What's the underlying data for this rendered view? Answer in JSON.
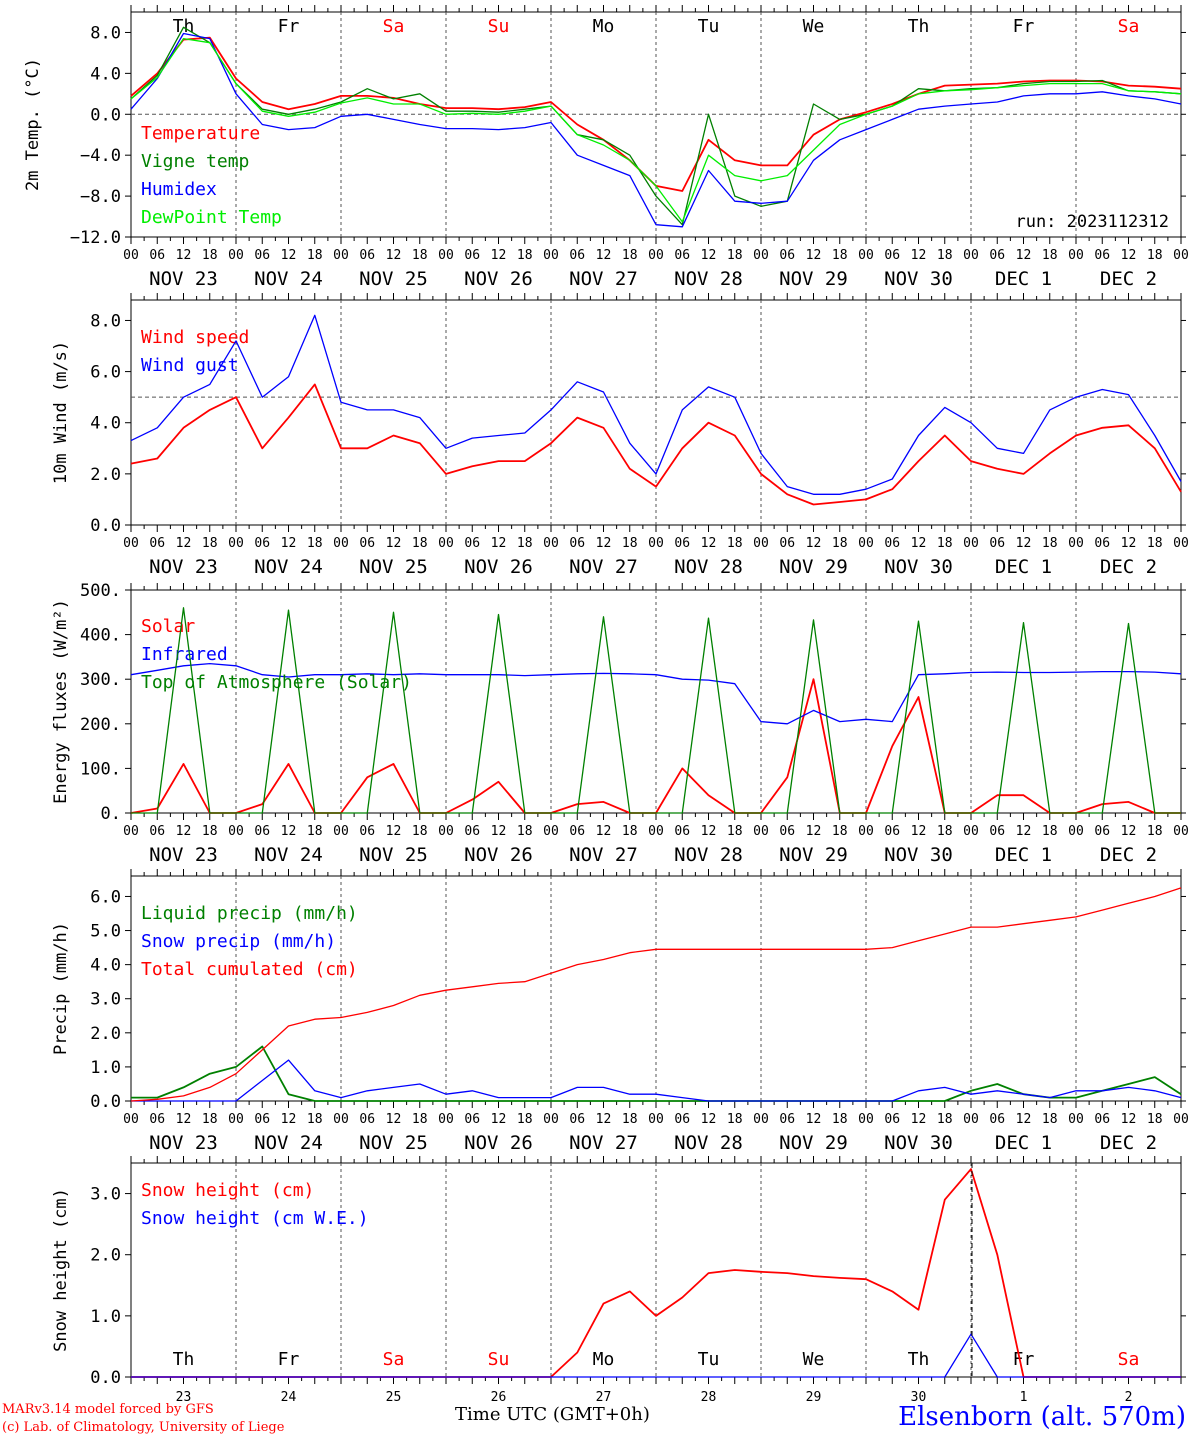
{
  "footer": {
    "credit_line1": "MARv3.14 model forced by GFS",
    "credit_line2": "(c) Lab. of Climatology, University of Liege",
    "time_label": "Time UTC (GMT+0h)",
    "station": "Elsenborn (alt. 570m)"
  },
  "colors": {
    "red": "#ff0000",
    "darkgreen": "#008000",
    "blue": "#0000ff",
    "lightgreen": "#00ee00",
    "grid": "#000000"
  },
  "axis_common": {
    "hour_ticks": [
      "00",
      "06",
      "12",
      "18",
      "00",
      "06",
      "12",
      "18",
      "00",
      "06",
      "12",
      "18",
      "00",
      "06",
      "12",
      "18",
      "00",
      "06",
      "12",
      "18",
      "00",
      "06",
      "12",
      "18",
      "00",
      "06",
      "12",
      "18",
      "00",
      "06",
      "12",
      "18",
      "00",
      "06",
      "12",
      "18",
      "00",
      "06",
      "12",
      "18",
      "00"
    ],
    "date_labels": [
      "NOV 23",
      "NOV 24",
      "NOV 25",
      "NOV 26",
      "NOV 27",
      "NOV 28",
      "NOV 29",
      "NOV 30",
      "DEC  1",
      "DEC  2"
    ],
    "day_names": [
      "Th",
      "Fr",
      "Sa",
      "Su",
      "Mo",
      "Tu",
      "We",
      "Th",
      "Fr",
      "Sa"
    ],
    "day_colors": [
      "#000000",
      "#000000",
      "#ff0000",
      "#ff0000",
      "#000000",
      "#000000",
      "#000000",
      "#000000",
      "#000000",
      "#ff0000"
    ],
    "day_numbers": [
      "23",
      "24",
      "25",
      "26",
      "27",
      "28",
      "29",
      "30",
      "1",
      "2"
    ]
  },
  "chart_data": [
    {
      "type": "line",
      "ylabel": "2m Temp. (°C)",
      "yticks": [
        "8.0",
        "4.0",
        "0.0",
        "−4.0",
        "−8.0",
        "−12.0"
      ],
      "ylim": [
        -12,
        10
      ],
      "run_label": "run: 2023112312",
      "x": [
        0,
        6,
        12,
        18,
        24,
        30,
        36,
        42,
        48,
        54,
        60,
        66,
        72,
        78,
        84,
        90,
        96,
        102,
        108,
        114,
        120,
        126,
        132,
        138,
        144,
        150,
        156,
        162,
        168,
        174,
        180,
        186,
        192,
        198,
        204,
        210,
        216,
        222,
        228,
        234,
        240
      ],
      "series": [
        {
          "name": "Temperature",
          "color": "#ff0000",
          "values": [
            1.8,
            4.0,
            7.3,
            7.5,
            3.5,
            1.2,
            0.5,
            1.0,
            1.8,
            1.8,
            1.6,
            1.0,
            0.6,
            0.6,
            0.5,
            0.7,
            1.2,
            -1.0,
            -2.5,
            -4.5,
            -7.0,
            -7.5,
            -2.5,
            -4.5,
            -5.0,
            -5.0,
            -2.0,
            -0.5,
            0.2,
            1.0,
            2.0,
            2.8,
            2.9,
            3.0,
            3.2,
            3.3,
            3.3,
            3.2,
            2.8,
            2.7,
            2.5
          ]
        },
        {
          "name": "Vigne temp",
          "color": "#008000",
          "values": [
            1.5,
            3.8,
            8.5,
            7.0,
            3.0,
            0.5,
            0.0,
            0.5,
            1.2,
            2.5,
            1.5,
            2.0,
            0.3,
            0.3,
            0.2,
            0.5,
            0.8,
            -2.0,
            -2.5,
            -4.0,
            -8.0,
            -10.8,
            0.0,
            -8.0,
            -9.0,
            -8.5,
            1.0,
            -0.5,
            0.0,
            0.8,
            2.5,
            2.3,
            2.5,
            2.6,
            3.0,
            3.2,
            3.2,
            3.3,
            2.3,
            2.2,
            2.0
          ]
        },
        {
          "name": "Humidex",
          "color": "#0000ff",
          "values": [
            0.5,
            3.5,
            7.9,
            7.4,
            2.0,
            -1.0,
            -1.5,
            -1.3,
            -0.2,
            0.0,
            -0.5,
            -1.0,
            -1.4,
            -1.4,
            -1.5,
            -1.3,
            -0.8,
            -4.0,
            -5.0,
            -6.0,
            -10.8,
            -11.0,
            -5.5,
            -8.5,
            -8.7,
            -8.5,
            -4.5,
            -2.5,
            -1.5,
            -0.5,
            0.5,
            0.8,
            1.0,
            1.2,
            1.8,
            2.0,
            2.0,
            2.2,
            1.8,
            1.5,
            1.0
          ]
        },
        {
          "name": "DewPoint Temp",
          "color": "#00ee00",
          "values": [
            1.5,
            3.6,
            7.4,
            7.0,
            3.0,
            0.3,
            -0.2,
            0.2,
            1.1,
            1.6,
            1.0,
            1.0,
            0.0,
            0.1,
            0.0,
            0.3,
            0.8,
            -2.0,
            -3.0,
            -4.5,
            -7.0,
            -10.5,
            -4.0,
            -6.0,
            -6.5,
            -6.0,
            -3.5,
            -1.0,
            0.0,
            0.8,
            2.0,
            2.3,
            2.4,
            2.6,
            2.8,
            3.0,
            3.0,
            3.0,
            2.3,
            2.2,
            2.0
          ]
        }
      ],
      "reference_line": 0
    },
    {
      "type": "line",
      "ylabel": "10m Wind (m/s)",
      "yticks": [
        "8.0",
        "6.0",
        "4.0",
        "2.0",
        "0.0"
      ],
      "ylim": [
        0,
        8.8
      ],
      "x": [
        0,
        6,
        12,
        18,
        24,
        30,
        36,
        42,
        48,
        54,
        60,
        66,
        72,
        78,
        84,
        90,
        96,
        102,
        108,
        114,
        120,
        126,
        132,
        138,
        144,
        150,
        156,
        162,
        168,
        174,
        180,
        186,
        192,
        198,
        204,
        210,
        216,
        222,
        228,
        234,
        240
      ],
      "series": [
        {
          "name": "Wind speed",
          "color": "#ff0000",
          "values": [
            2.4,
            2.6,
            3.8,
            4.5,
            5.0,
            3.0,
            4.2,
            5.5,
            3.0,
            3.0,
            3.5,
            3.2,
            2.0,
            2.3,
            2.5,
            2.5,
            3.2,
            4.2,
            3.8,
            2.2,
            1.5,
            3.0,
            4.0,
            3.5,
            2.0,
            1.2,
            0.8,
            0.9,
            1.0,
            1.4,
            2.5,
            3.5,
            2.5,
            2.2,
            2.0,
            2.8,
            3.5,
            3.8,
            3.9,
            3.0,
            1.3
          ]
        },
        {
          "name": "Wind gust",
          "color": "#0000ff",
          "values": [
            3.3,
            3.8,
            5.0,
            5.5,
            7.2,
            5.0,
            5.8,
            8.2,
            4.8,
            4.5,
            4.5,
            4.2,
            3.0,
            3.4,
            3.5,
            3.6,
            4.5,
            5.6,
            5.2,
            3.2,
            2.0,
            4.5,
            5.4,
            5.0,
            2.8,
            1.5,
            1.2,
            1.2,
            1.4,
            1.8,
            3.5,
            4.6,
            4.0,
            3.0,
            2.8,
            4.5,
            5.0,
            5.3,
            5.1,
            3.5,
            1.7
          ]
        }
      ],
      "reference_line": 5.0
    },
    {
      "type": "line",
      "ylabel": "Energy fluxes (W/m²)",
      "yticks": [
        "500.",
        "400.",
        "300.",
        "200.",
        "100.",
        "0."
      ],
      "ylim": [
        0,
        500
      ],
      "x": [
        0,
        6,
        12,
        18,
        24,
        30,
        36,
        42,
        48,
        54,
        60,
        66,
        72,
        78,
        84,
        90,
        96,
        102,
        108,
        114,
        120,
        126,
        132,
        138,
        144,
        150,
        156,
        162,
        168,
        174,
        180,
        186,
        192,
        198,
        204,
        210,
        216,
        222,
        228,
        234,
        240
      ],
      "series": [
        {
          "name": "Solar",
          "color": "#ff0000",
          "values": [
            0,
            10,
            110,
            0,
            0,
            20,
            110,
            0,
            0,
            80,
            110,
            0,
            0,
            30,
            70,
            0,
            0,
            20,
            25,
            0,
            0,
            100,
            40,
            0,
            0,
            80,
            300,
            0,
            0,
            150,
            260,
            0,
            0,
            40,
            40,
            0,
            0,
            20,
            25,
            0,
            0
          ]
        },
        {
          "name": "Infrared",
          "color": "#0000ff",
          "values": [
            310,
            320,
            330,
            335,
            330,
            310,
            305,
            310,
            310,
            312,
            310,
            312,
            310,
            310,
            310,
            308,
            310,
            312,
            313,
            312,
            310,
            300,
            298,
            290,
            205,
            200,
            230,
            205,
            210,
            205,
            310,
            312,
            315,
            316,
            315,
            315,
            316,
            317,
            317,
            316,
            312
          ]
        },
        {
          "name": "Top of Atmosphere (Solar)",
          "color": "#008000",
          "values": [
            0,
            0,
            460,
            0,
            0,
            0,
            455,
            0,
            0,
            0,
            450,
            0,
            0,
            0,
            445,
            0,
            0,
            0,
            440,
            0,
            0,
            0,
            437,
            0,
            0,
            0,
            433,
            0,
            0,
            0,
            430,
            0,
            0,
            0,
            427,
            0,
            0,
            0,
            425,
            0,
            0
          ]
        }
      ]
    },
    {
      "type": "line",
      "ylabel": "Precip (mm/h)",
      "yticks": [
        "6.0",
        "5.0",
        "4.0",
        "3.0",
        "2.0",
        "1.0",
        "0.0"
      ],
      "ylim": [
        0,
        6.6
      ],
      "x": [
        0,
        6,
        12,
        18,
        24,
        30,
        36,
        42,
        48,
        54,
        60,
        66,
        72,
        78,
        84,
        90,
        96,
        102,
        108,
        114,
        120,
        126,
        132,
        138,
        144,
        150,
        156,
        162,
        168,
        174,
        180,
        186,
        192,
        198,
        204,
        210,
        216,
        222,
        228,
        234,
        240
      ],
      "series": [
        {
          "name": "Liquid precip (mm/h)",
          "color": "#008000",
          "values": [
            0.1,
            0.1,
            0.4,
            0.8,
            1.0,
            1.6,
            0.2,
            0.0,
            0.0,
            0.0,
            0.0,
            0.0,
            0.0,
            0.0,
            0.0,
            0.0,
            0.0,
            0.0,
            0.0,
            0.0,
            0.0,
            0.0,
            0.0,
            0.0,
            0.0,
            0.0,
            0.0,
            0.0,
            0.0,
            0.0,
            0.0,
            0.0,
            0.3,
            0.5,
            0.2,
            0.1,
            0.1,
            0.3,
            0.5,
            0.7,
            0.2
          ]
        },
        {
          "name": "Snow precip (mm/h)",
          "color": "#0000ff",
          "values": [
            0.0,
            0.0,
            0.0,
            0.0,
            0.0,
            0.6,
            1.2,
            0.3,
            0.1,
            0.3,
            0.4,
            0.5,
            0.2,
            0.3,
            0.1,
            0.1,
            0.1,
            0.4,
            0.4,
            0.2,
            0.2,
            0.1,
            0.0,
            0.0,
            0.0,
            0.0,
            0.0,
            0.0,
            0.0,
            0.0,
            0.3,
            0.4,
            0.2,
            0.3,
            0.2,
            0.1,
            0.3,
            0.3,
            0.4,
            0.3,
            0.1
          ]
        },
        {
          "name": "Total cumulated (cm)",
          "color": "#ff0000",
          "values": [
            0.0,
            0.05,
            0.15,
            0.4,
            0.8,
            1.5,
            2.2,
            2.4,
            2.45,
            2.6,
            2.8,
            3.1,
            3.25,
            3.35,
            3.45,
            3.5,
            3.75,
            4.0,
            4.15,
            4.35,
            4.45,
            4.45,
            4.45,
            4.45,
            4.45,
            4.45,
            4.45,
            4.45,
            4.45,
            4.5,
            4.7,
            4.9,
            5.1,
            5.1,
            5.2,
            5.3,
            5.4,
            5.6,
            5.8,
            6.0,
            6.25
          ]
        }
      ]
    },
    {
      "type": "line",
      "ylabel": "Snow height (cm)",
      "yticks": [
        "3.0",
        "2.0",
        "1.0",
        "0.0"
      ],
      "ylim": [
        0,
        3.5
      ],
      "x": [
        0,
        6,
        12,
        18,
        24,
        30,
        36,
        42,
        48,
        54,
        60,
        66,
        72,
        78,
        84,
        90,
        96,
        102,
        108,
        114,
        120,
        126,
        132,
        138,
        144,
        150,
        156,
        162,
        168,
        174,
        180,
        186,
        192,
        198,
        204,
        210,
        216,
        222,
        228,
        234,
        240
      ],
      "series": [
        {
          "name": "Snow height (cm)",
          "color": "#ff0000",
          "values": [
            0,
            0,
            0,
            0,
            0,
            0,
            0,
            0,
            0,
            0,
            0,
            0,
            0,
            0,
            0,
            0,
            0,
            0.4,
            1.2,
            1.4,
            1.0,
            1.3,
            1.7,
            1.75,
            1.72,
            1.7,
            1.65,
            1.62,
            1.6,
            1.4,
            1.1,
            2.9,
            3.4,
            2.0,
            0.0,
            0,
            0,
            0,
            0,
            0,
            0
          ]
        },
        {
          "name": "Snow height (cm W.E.)",
          "color": "#0000ff",
          "values": [
            0,
            0,
            0,
            0,
            0,
            0,
            0,
            0,
            0,
            0,
            0,
            0,
            0,
            0,
            0,
            0,
            0,
            0,
            0,
            0,
            0,
            0,
            0,
            0,
            0,
            0,
            0,
            0,
            0,
            0,
            0,
            0,
            0.7,
            0.0,
            0,
            0,
            0,
            0,
            0,
            0,
            0
          ]
        }
      ]
    }
  ]
}
